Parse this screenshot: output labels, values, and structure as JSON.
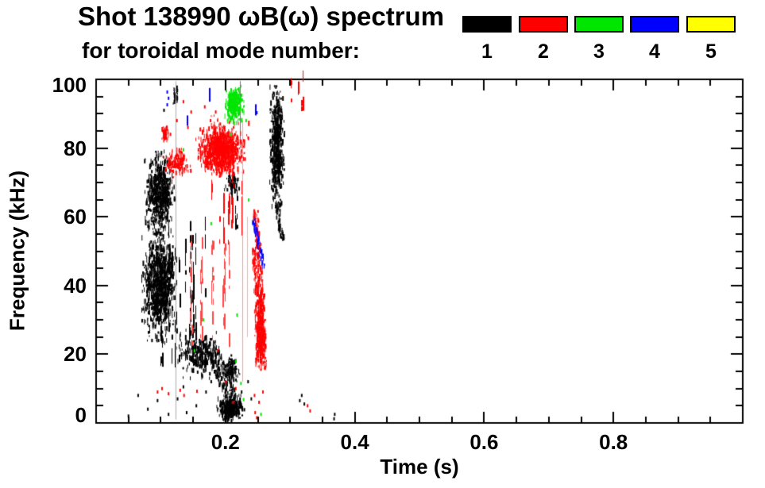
{
  "header": {
    "line1": "Shot 138990 ωB(ω) spectrum",
    "line2": "for toroidal mode number:"
  },
  "legend": {
    "entries": [
      {
        "label": "1",
        "color": "#000000"
      },
      {
        "label": "2",
        "color": "#ff0000"
      },
      {
        "label": "3",
        "color": "#00e600"
      },
      {
        "label": "4",
        "color": "#0000ff"
      },
      {
        "label": "5",
        "color": "#ffff00"
      }
    ]
  },
  "chart_data": {
    "type": "scatter",
    "title": "Shot 138990 ωB(ω) spectrum for toroidal mode number: 1 2 3 4 5",
    "xlabel": "Time (s)",
    "ylabel": "Frequency (kHz)",
    "xlim": [
      0,
      1.0
    ],
    "ylim": [
      0,
      100
    ],
    "grid": false,
    "x_major_ticks": [
      0.2,
      0.4,
      0.6,
      0.8
    ],
    "x_tick_labels": [
      "0.2",
      "0.4",
      "0.6",
      "0.8"
    ],
    "x_minor_step": 0.05,
    "y_major_ticks": [
      0,
      20,
      40,
      60,
      80,
      100
    ],
    "y_tick_labels": [
      "0",
      "20",
      "40",
      "60",
      "80",
      "100"
    ],
    "y_minor_step": 5,
    "series": [
      {
        "name": "1",
        "color": "#000000",
        "clusters": [
          {
            "shape": "blob",
            "t": [
              0.07,
              0.124
            ],
            "f": [
              24,
              57
            ],
            "n": 1000
          },
          {
            "shape": "blob",
            "t": [
              0.074,
              0.12
            ],
            "f": [
              55,
              79
            ],
            "n": 650
          },
          {
            "shape": "streaks",
            "t": [
              0.1,
              0.178
            ],
            "f": [
              16,
              56
            ],
            "lines": 20,
            "segs": 6
          },
          {
            "shape": "blob",
            "t": [
              0.122,
              0.19
            ],
            "f": [
              13,
              27
            ],
            "n": 260
          },
          {
            "shape": "diag",
            "from": [
              0.172,
              24
            ],
            "to": [
              0.212,
              6
            ],
            "w": 9,
            "n": 220
          },
          {
            "shape": "blob",
            "t": [
              0.186,
              0.228
            ],
            "f": [
              0.5,
              8
            ],
            "n": 330
          },
          {
            "shape": "blob",
            "t": [
              0.196,
              0.222
            ],
            "f": [
              11,
              20
            ],
            "n": 110
          },
          {
            "shape": "blob",
            "t": [
              0.198,
              0.22
            ],
            "f": [
              66.5,
              73.5
            ],
            "n": 60
          },
          {
            "shape": "blob",
            "t": [
              0.268,
              0.29
            ],
            "f": [
              63,
              98
            ],
            "n": 560
          },
          {
            "shape": "diag",
            "from": [
              0.279,
              64
            ],
            "to": [
              0.287,
              53
            ],
            "w": 3,
            "n": 60
          },
          {
            "shape": "blob",
            "t": [
              0.118,
              0.126
            ],
            "f": [
              92.5,
              97.5
            ],
            "n": 30
          },
          {
            "shape": "streaks",
            "t": [
              0.205,
              0.218
            ],
            "f": [
              55,
              65
            ],
            "lines": 3,
            "segs": 3
          },
          {
            "shape": "vline",
            "t": 0.1227,
            "f": [
              1,
              99.5
            ],
            "w": 1,
            "color": "#aaaaaa"
          },
          {
            "shape": "vline",
            "t": 0.2228,
            "f": [
              80,
              99.5
            ],
            "w": 1,
            "color": "#777777"
          }
        ],
        "points": [
          [
            0.065,
            8
          ],
          [
            0.08,
            4
          ],
          [
            0.095,
            6.5
          ],
          [
            0.112,
            2.5
          ],
          [
            0.126,
            7
          ],
          [
            0.14,
            3
          ],
          [
            0.155,
            5
          ],
          [
            0.17,
            9
          ],
          [
            0.178,
            12
          ],
          [
            0.315,
            6.5
          ],
          [
            0.318,
            8
          ],
          [
            0.322,
            5.5
          ],
          [
            0.05,
            2
          ],
          [
            0.135,
            10.5
          ],
          [
            0.225,
            9
          ],
          [
            0.235,
            12
          ],
          [
            0.24,
            7
          ],
          [
            0.368,
            1.2
          ],
          [
            0.369,
            2.5
          ],
          [
            0.105,
            91
          ]
        ]
      },
      {
        "name": "2",
        "color": "#ff0000",
        "clusters": [
          {
            "shape": "blob",
            "t": [
              0.157,
              0.229
            ],
            "f": [
              72.5,
              86
            ],
            "n": 800
          },
          {
            "shape": "blob",
            "t": [
              0.15,
              0.235
            ],
            "f": [
              69,
              90
            ],
            "n": 200
          },
          {
            "shape": "blob",
            "t": [
              0.104,
              0.146
            ],
            "f": [
              71.5,
              80
            ],
            "n": 130
          },
          {
            "shape": "blob",
            "t": [
              0.099,
              0.112
            ],
            "f": [
              81.5,
              86.5
            ],
            "n": 45
          },
          {
            "shape": "streaks",
            "t": [
              0.145,
              0.212
            ],
            "f": [
              22,
              52
            ],
            "lines": 16,
            "segs": 6,
            "color": "#ff4444"
          },
          {
            "shape": "streaks",
            "t": [
              0.162,
              0.228
            ],
            "f": [
              51,
              70
            ],
            "lines": 9,
            "segs": 4
          },
          {
            "shape": "diag",
            "from": [
              0.2475,
              52
            ],
            "to": [
              0.256,
              16
            ],
            "w": 6,
            "n": 300
          },
          {
            "shape": "blob",
            "t": [
              0.244,
              0.261
            ],
            "f": [
              15,
              40
            ],
            "n": 280
          },
          {
            "shape": "diag",
            "from": [
              0.2455,
              62
            ],
            "to": [
              0.249,
              51
            ],
            "w": 3,
            "n": 50
          },
          {
            "shape": "streaks",
            "t": [
              0.3,
              0.326
            ],
            "f": [
              89.5,
              99.5
            ],
            "lines": 4,
            "segs": 3
          },
          {
            "shape": "vline",
            "t": 0.2265,
            "f": [
              12,
              88
            ],
            "w": 1,
            "color": "#ff9999"
          },
          {
            "shape": "vline",
            "t": 0.233,
            "f": [
              25,
              60
            ],
            "w": 1,
            "color": "#ffaaaa"
          }
        ],
        "points": [
          [
            0.095,
            9
          ],
          [
            0.102,
            10
          ],
          [
            0.112,
            8.5
          ],
          [
            0.13,
            9.5
          ],
          [
            0.136,
            8
          ],
          [
            0.156,
            9.2
          ],
          [
            0.188,
            21
          ],
          [
            0.2,
            12
          ],
          [
            0.212,
            6
          ],
          [
            0.216,
            10
          ],
          [
            0.246,
            3
          ],
          [
            0.2485,
            1.5
          ],
          [
            0.327,
            5
          ],
          [
            0.331,
            3.5
          ],
          [
            0.177,
            88
          ],
          [
            0.185,
            90.5
          ],
          [
            0.192,
            87
          ],
          [
            0.135,
            93.5
          ],
          [
            0.147,
            90.5
          ],
          [
            0.125,
            88
          ],
          [
            0.142,
            86
          ],
          [
            0.115,
            84
          ],
          [
            0.168,
            92
          ],
          [
            0.245,
            8
          ],
          [
            0.252,
            6
          ],
          [
            0.258,
            9
          ]
        ]
      },
      {
        "name": "3",
        "color": "#00e600",
        "clusters": [
          {
            "shape": "blob",
            "t": [
              0.196,
              0.229
            ],
            "f": [
              86,
              98
            ],
            "n": 200
          },
          {
            "shape": "blob",
            "t": [
              0.203,
              0.222
            ],
            "f": [
              90,
              97
            ],
            "n": 130
          }
        ],
        "points": [
          [
            0.135,
            79.5
          ],
          [
            0.236,
            64.9
          ],
          [
            0.218,
            31.4
          ],
          [
            0.216,
            18
          ],
          [
            0.224,
            11.5
          ],
          [
            0.228,
            6.8
          ],
          [
            0.152,
            21
          ],
          [
            0.255,
            2.5
          ],
          [
            0.178,
            58
          ],
          [
            0.166,
            30
          ],
          [
            0.208,
            84
          ],
          [
            0.232,
            88
          ]
        ]
      },
      {
        "name": "4",
        "color": "#0000ff",
        "clusters": [
          {
            "shape": "vline",
            "t": 0.175,
            "f": [
              93.5,
              97.5
            ],
            "w": 2
          },
          {
            "shape": "vline",
            "t": 0.14,
            "f": [
              86.5,
              89.5
            ],
            "w": 2
          },
          {
            "shape": "vline",
            "t": 0.246,
            "f": [
              89.5,
              92.5
            ],
            "w": 2
          },
          {
            "shape": "diag",
            "from": [
              0.2425,
              59
            ],
            "to": [
              0.259,
              45
            ],
            "w": 2,
            "n": 50
          }
        ],
        "points": [
          [
            0.11,
            96.3
          ],
          [
            0.11,
            92.6
          ],
          [
            0.247,
            92.3
          ],
          [
            0.2485,
            90.3
          ],
          [
            0.112,
            94.5
          ]
        ]
      },
      {
        "name": "5",
        "color": "#ffff00",
        "clusters": [],
        "points": []
      }
    ]
  }
}
